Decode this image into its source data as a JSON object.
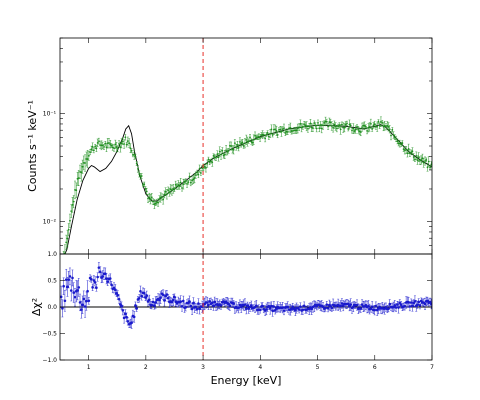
{
  "chart_data": [
    {
      "type": "scatter",
      "panel": "spectrum",
      "ylabel": "Counts s⁻¹ keV⁻¹",
      "xlim": [
        0.5,
        7
      ],
      "ylim": [
        0.005,
        0.5
      ],
      "yscale": "log",
      "y_ticks": [
        {
          "value": 0.01,
          "label": "10⁻²"
        },
        {
          "value": 0.1,
          "label": "10⁻¹"
        }
      ],
      "reference_line": {
        "x": 3,
        "color": "#e8302a",
        "style": "dashed"
      },
      "colors": {
        "data": "#1f8f1f",
        "model": "#000000"
      },
      "model_points": [
        [
          0.55,
          0.0045
        ],
        [
          0.62,
          0.0055
        ],
        [
          0.7,
          0.009
        ],
        [
          0.8,
          0.016
        ],
        [
          0.9,
          0.024
        ],
        [
          1.0,
          0.031
        ],
        [
          1.05,
          0.033
        ],
        [
          1.1,
          0.032
        ],
        [
          1.2,
          0.029
        ],
        [
          1.3,
          0.031
        ],
        [
          1.4,
          0.036
        ],
        [
          1.5,
          0.045
        ],
        [
          1.6,
          0.06
        ],
        [
          1.65,
          0.072
        ],
        [
          1.7,
          0.077
        ],
        [
          1.75,
          0.065
        ],
        [
          1.8,
          0.045
        ],
        [
          1.9,
          0.026
        ],
        [
          2.0,
          0.018
        ],
        [
          2.1,
          0.0155
        ],
        [
          2.2,
          0.0155
        ],
        [
          2.3,
          0.017
        ],
        [
          2.5,
          0.02
        ],
        [
          2.7,
          0.024
        ],
        [
          2.9,
          0.029
        ],
        [
          3.0,
          0.033
        ],
        [
          3.2,
          0.039
        ],
        [
          3.5,
          0.047
        ],
        [
          3.8,
          0.055
        ],
        [
          4.0,
          0.061
        ],
        [
          4.5,
          0.072
        ],
        [
          5.0,
          0.078
        ],
        [
          5.5,
          0.076
        ],
        [
          5.8,
          0.072
        ],
        [
          6.0,
          0.076
        ],
        [
          6.1,
          0.079
        ],
        [
          6.2,
          0.074
        ],
        [
          6.4,
          0.057
        ],
        [
          6.6,
          0.044
        ],
        [
          6.8,
          0.037
        ],
        [
          7.0,
          0.032
        ]
      ],
      "data_profile": [
        [
          0.55,
          0.004
        ],
        [
          0.65,
          0.008
        ],
        [
          0.75,
          0.017
        ],
        [
          0.85,
          0.028
        ],
        [
          0.95,
          0.038
        ],
        [
          1.05,
          0.046
        ],
        [
          1.15,
          0.052
        ],
        [
          1.25,
          0.051
        ],
        [
          1.35,
          0.05
        ],
        [
          1.45,
          0.05
        ],
        [
          1.55,
          0.052
        ],
        [
          1.65,
          0.057
        ],
        [
          1.75,
          0.048
        ],
        [
          1.85,
          0.033
        ],
        [
          1.95,
          0.023
        ],
        [
          2.05,
          0.017
        ],
        [
          2.15,
          0.0155
        ],
        [
          2.3,
          0.017
        ],
        [
          2.5,
          0.02
        ],
        [
          2.7,
          0.023
        ],
        [
          2.9,
          0.027
        ],
        [
          3.0,
          0.032
        ],
        [
          3.2,
          0.039
        ],
        [
          3.5,
          0.048
        ],
        [
          3.8,
          0.056
        ],
        [
          4.0,
          0.062
        ],
        [
          4.5,
          0.073
        ],
        [
          5.0,
          0.079
        ],
        [
          5.5,
          0.077
        ],
        [
          5.8,
          0.072
        ],
        [
          6.0,
          0.076
        ],
        [
          6.1,
          0.08
        ],
        [
          6.2,
          0.075
        ],
        [
          6.4,
          0.057
        ],
        [
          6.6,
          0.044
        ],
        [
          6.8,
          0.037
        ],
        [
          7.0,
          0.032
        ]
      ]
    },
    {
      "type": "scatter",
      "panel": "residuals",
      "xlabel": "Energy [keV]",
      "ylabel": "Δχ²",
      "xlim": [
        0.5,
        7
      ],
      "ylim": [
        -1.0,
        1.0
      ],
      "x_ticks": [
        1,
        2,
        3,
        4,
        5,
        6,
        7
      ],
      "y_ticks": [
        {
          "value": -1.0,
          "label": "−1.0"
        },
        {
          "value": -0.5,
          "label": "−0.5"
        },
        {
          "value": 0.0,
          "label": "0.0"
        },
        {
          "value": 0.5,
          "label": "0.5"
        },
        {
          "value": 1.0,
          "label": "1.0"
        }
      ],
      "zero_line": true,
      "reference_line": {
        "x": 3,
        "color": "#e8302a",
        "style": "dashed"
      },
      "colors": {
        "data": "#1a1acc",
        "zero": "#000000"
      },
      "data_profile": [
        [
          0.5,
          0.05
        ],
        [
          0.6,
          0.35
        ],
        [
          0.7,
          0.5
        ],
        [
          0.8,
          0.3
        ],
        [
          0.9,
          0.08
        ],
        [
          1.0,
          0.25
        ],
        [
          1.1,
          0.48
        ],
        [
          1.2,
          0.62
        ],
        [
          1.3,
          0.6
        ],
        [
          1.4,
          0.45
        ],
        [
          1.5,
          0.2
        ],
        [
          1.6,
          -0.1
        ],
        [
          1.7,
          -0.32
        ],
        [
          1.75,
          -0.3
        ],
        [
          1.8,
          -0.1
        ],
        [
          1.9,
          0.22
        ],
        [
          1.95,
          0.3
        ],
        [
          2.0,
          0.2
        ],
        [
          2.1,
          0.05
        ],
        [
          2.2,
          0.15
        ],
        [
          2.3,
          0.2
        ],
        [
          2.5,
          0.12
        ],
        [
          2.7,
          0.05
        ],
        [
          2.9,
          0.0
        ],
        [
          3.0,
          0.05
        ],
        [
          3.3,
          0.08
        ],
        [
          3.6,
          0.02
        ],
        [
          4.0,
          -0.02
        ],
        [
          4.5,
          -0.04
        ],
        [
          5.0,
          0.0
        ],
        [
          5.5,
          0.03
        ],
        [
          6.0,
          -0.02
        ],
        [
          6.5,
          0.04
        ],
        [
          7.0,
          0.1
        ]
      ]
    }
  ]
}
